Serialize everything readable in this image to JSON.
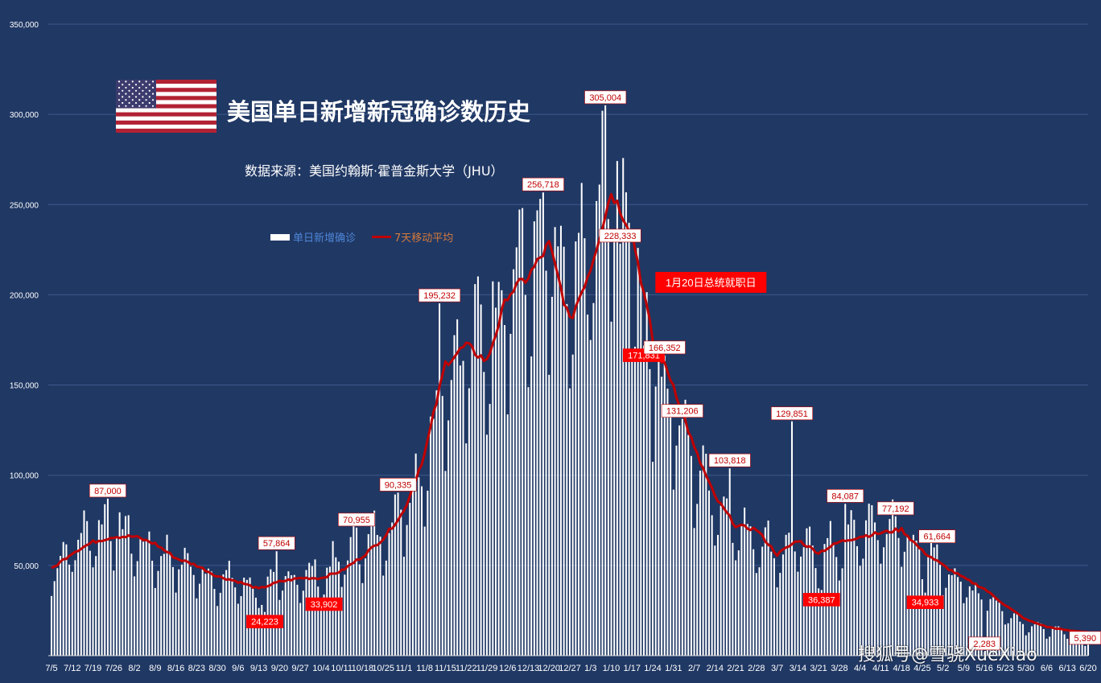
{
  "title": "美国单日新增新冠确诊数历史",
  "subtitle": "数据来源：美国约翰斯·霍普金斯大学（JHU）",
  "legend": {
    "bar_label": "单日新增确诊",
    "line_label": "7天移动平均"
  },
  "annotation_inauguration": "1月20日总统就职日",
  "watermark": "搜狐号@雪骁XueXiao",
  "colors": {
    "background": "#203864",
    "bars": "#ffffff",
    "line": "#c00000",
    "label_box": "#ffffff",
    "label_text": "#c00000",
    "low_label_box": "#ff0000"
  },
  "chart_data": {
    "type": "bar",
    "title": "美国单日新增新冠确诊数历史",
    "xlabel": "",
    "ylabel": "",
    "ylim": [
      0,
      350000
    ],
    "yticks": [
      0,
      50000,
      100000,
      150000,
      200000,
      250000,
      300000,
      350000
    ],
    "ytick_labels": [
      "",
      "50,000",
      "100,000",
      "150,000",
      "200,000",
      "250,000",
      "300,000",
      "350,000"
    ],
    "grid": true,
    "legend_position": "top-left",
    "x_tick_labels": [
      "7/5",
      "7/12",
      "7/19",
      "7/26",
      "8/2",
      "8/9",
      "8/16",
      "8/23",
      "8/30",
      "9/6",
      "9/13",
      "9/20",
      "9/27",
      "10/4",
      "10/11",
      "10/18",
      "10/25",
      "11/1",
      "11/8",
      "11/15",
      "11/22",
      "11/29",
      "12/6",
      "12/13",
      "12/20",
      "12/27",
      "1/3",
      "1/10",
      "1/17",
      "1/24",
      "1/31",
      "2/7",
      "2/14",
      "2/21",
      "2/28",
      "3/7",
      "3/14",
      "3/21",
      "3/28",
      "4/4",
      "4/11",
      "4/18",
      "4/25",
      "5/2",
      "5/9",
      "5/16",
      "5/23",
      "5/30",
      "6/6",
      "6/13",
      "6/20"
    ],
    "series": [
      {
        "name": "单日新增确诊",
        "kind": "bar",
        "weekly_points": [
          [
            0,
            46000
          ],
          [
            1,
            60000
          ],
          [
            2,
            68000
          ],
          [
            3,
            72000
          ],
          [
            4,
            62000
          ],
          [
            5,
            55000
          ],
          [
            6,
            53000
          ],
          [
            7,
            45000
          ],
          [
            8,
            42000
          ],
          [
            9,
            40000
          ],
          [
            10,
            35000
          ],
          [
            11,
            40000
          ],
          [
            12,
            43000
          ],
          [
            13,
            45000
          ],
          [
            14,
            52000
          ],
          [
            15,
            60000
          ],
          [
            16,
            66000
          ],
          [
            17,
            82000
          ],
          [
            18,
            105000
          ],
          [
            19,
            155000
          ],
          [
            20,
            165000
          ],
          [
            21,
            175000
          ],
          [
            22,
            205000
          ],
          [
            23,
            210000
          ],
          [
            24,
            218000
          ],
          [
            25,
            190000
          ],
          [
            26,
            222000
          ],
          [
            27,
            260000
          ],
          [
            28,
            225000
          ],
          [
            29,
            165000
          ],
          [
            30,
            135000
          ],
          [
            31,
            105000
          ],
          [
            32,
            85000
          ],
          [
            33,
            70000
          ],
          [
            34,
            65000
          ],
          [
            35,
            55000
          ],
          [
            36,
            60000
          ],
          [
            37,
            55000
          ],
          [
            38,
            60000
          ],
          [
            39,
            68000
          ],
          [
            40,
            70000
          ],
          [
            41,
            68000
          ],
          [
            42,
            56000
          ],
          [
            43,
            48000
          ],
          [
            44,
            38000
          ],
          [
            45,
            32000
          ],
          [
            46,
            24000
          ],
          [
            47,
            17000
          ],
          [
            48,
            14000
          ],
          [
            49,
            12000
          ],
          [
            50,
            9000
          ]
        ],
        "labeled_peaks": [
          {
            "date": "7/24",
            "value": 87000
          },
          {
            "date": "9/15",
            "value": 24223
          },
          {
            "date": "9/19",
            "value": 57864
          },
          {
            "date": "10/5",
            "value": 33902
          },
          {
            "date": "10/16",
            "value": 70955
          },
          {
            "date": "10/30",
            "value": 90335
          },
          {
            "date": "11/13",
            "value": 195232
          },
          {
            "date": "12/18",
            "value": 256718
          },
          {
            "date": "1/8",
            "value": 305004
          },
          {
            "date": "1/13",
            "value": 228333
          },
          {
            "date": "1/21",
            "value": 171831
          },
          {
            "date": "1/28",
            "value": 166352
          },
          {
            "date": "2/3",
            "value": 131206
          },
          {
            "date": "2/19",
            "value": 103818
          },
          {
            "date": "3/12",
            "value": 129851
          },
          {
            "date": "3/22",
            "value": 36387
          },
          {
            "date": "3/30",
            "value": 84087
          },
          {
            "date": "4/16",
            "value": 77192
          },
          {
            "date": "4/26",
            "value": 34933
          },
          {
            "date": "4/30",
            "value": 61664
          },
          {
            "date": "5/16",
            "value": 2283
          },
          {
            "date": "6/19",
            "value": 5390
          }
        ]
      },
      {
        "name": "7天移动平均",
        "kind": "line",
        "weekly_points": [
          [
            0,
            48000
          ],
          [
            1,
            57000
          ],
          [
            2,
            63000
          ],
          [
            3,
            66000
          ],
          [
            4,
            66000
          ],
          [
            5,
            62000
          ],
          [
            6,
            54000
          ],
          [
            7,
            50000
          ],
          [
            8,
            44000
          ],
          [
            9,
            41000
          ],
          [
            10,
            37000
          ],
          [
            11,
            41000
          ],
          [
            12,
            43000
          ],
          [
            13,
            43000
          ],
          [
            14,
            47000
          ],
          [
            15,
            55000
          ],
          [
            16,
            65000
          ],
          [
            17,
            80000
          ],
          [
            18,
            112000
          ],
          [
            19,
            162000
          ],
          [
            20,
            172000
          ],
          [
            21,
            163000
          ],
          [
            22,
            200000
          ],
          [
            23,
            210000
          ],
          [
            24,
            228000
          ],
          [
            25,
            185000
          ],
          [
            26,
            215000
          ],
          [
            27,
            257000
          ],
          [
            28,
            235000
          ],
          [
            29,
            175000
          ],
          [
            30,
            150000
          ],
          [
            31,
            115000
          ],
          [
            32,
            88000
          ],
          [
            33,
            72000
          ],
          [
            34,
            70000
          ],
          [
            35,
            56000
          ],
          [
            36,
            64000
          ],
          [
            37,
            57000
          ],
          [
            38,
            63000
          ],
          [
            39,
            66000
          ],
          [
            40,
            68000
          ],
          [
            41,
            70000
          ],
          [
            42,
            58000
          ],
          [
            43,
            50000
          ],
          [
            44,
            43000
          ],
          [
            45,
            37000
          ],
          [
            46,
            28000
          ],
          [
            47,
            20000
          ],
          [
            48,
            16000
          ],
          [
            49,
            14000
          ],
          [
            50,
            13000
          ]
        ]
      }
    ]
  }
}
